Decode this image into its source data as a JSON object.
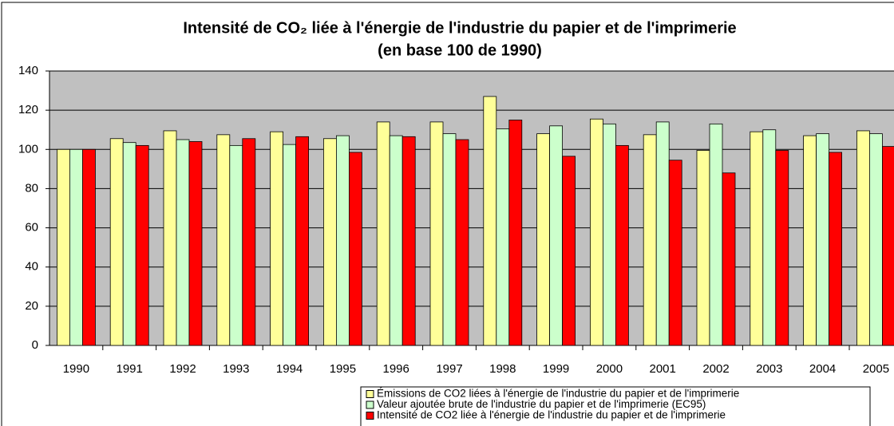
{
  "chart_data": {
    "type": "bar",
    "title": "Intensité de CO₂ liée à l'énergie de l'industrie du papier et de l'imprimerie",
    "subtitle": "(en base 100 de 1990)",
    "categories": [
      "1990",
      "1991",
      "1992",
      "1993",
      "1994",
      "1995",
      "1996",
      "1997",
      "1998",
      "1999",
      "2000",
      "2001",
      "2002",
      "2003",
      "2004",
      "2005"
    ],
    "series": [
      {
        "name": "Émissions de CO2 liées à l'énergie de l'industrie du papier et de l'imprimerie",
        "color": "#ffff99",
        "values": [
          100,
          105.5,
          109.5,
          107.5,
          109,
          105.5,
          114,
          114,
          127,
          108,
          115.5,
          107.5,
          99.5,
          109,
          107,
          109.5
        ]
      },
      {
        "name": "Valeur ajoutée brute de l'industrie du papier et de l'imprimerie (EC95)",
        "color": "#ccffcc",
        "values": [
          100,
          103.5,
          105,
          102,
          102.5,
          107,
          107,
          108,
          110.5,
          112,
          113,
          114,
          113,
          110,
          108,
          108
        ]
      },
      {
        "name": "Intensité de CO2 liée à l'énergie de l'industrie du papier et de l'imprimerie",
        "color": "#ff0000",
        "values": [
          100,
          102,
          104,
          105.5,
          106.5,
          98.5,
          106.5,
          105,
          115,
          96.5,
          102,
          94.5,
          88,
          99.5,
          98.5,
          101.5
        ]
      }
    ],
    "ylim": [
      0,
      140
    ],
    "yticks": [
      0,
      20,
      40,
      60,
      80,
      100,
      120,
      140
    ],
    "grid": true,
    "legend": "bottom"
  }
}
